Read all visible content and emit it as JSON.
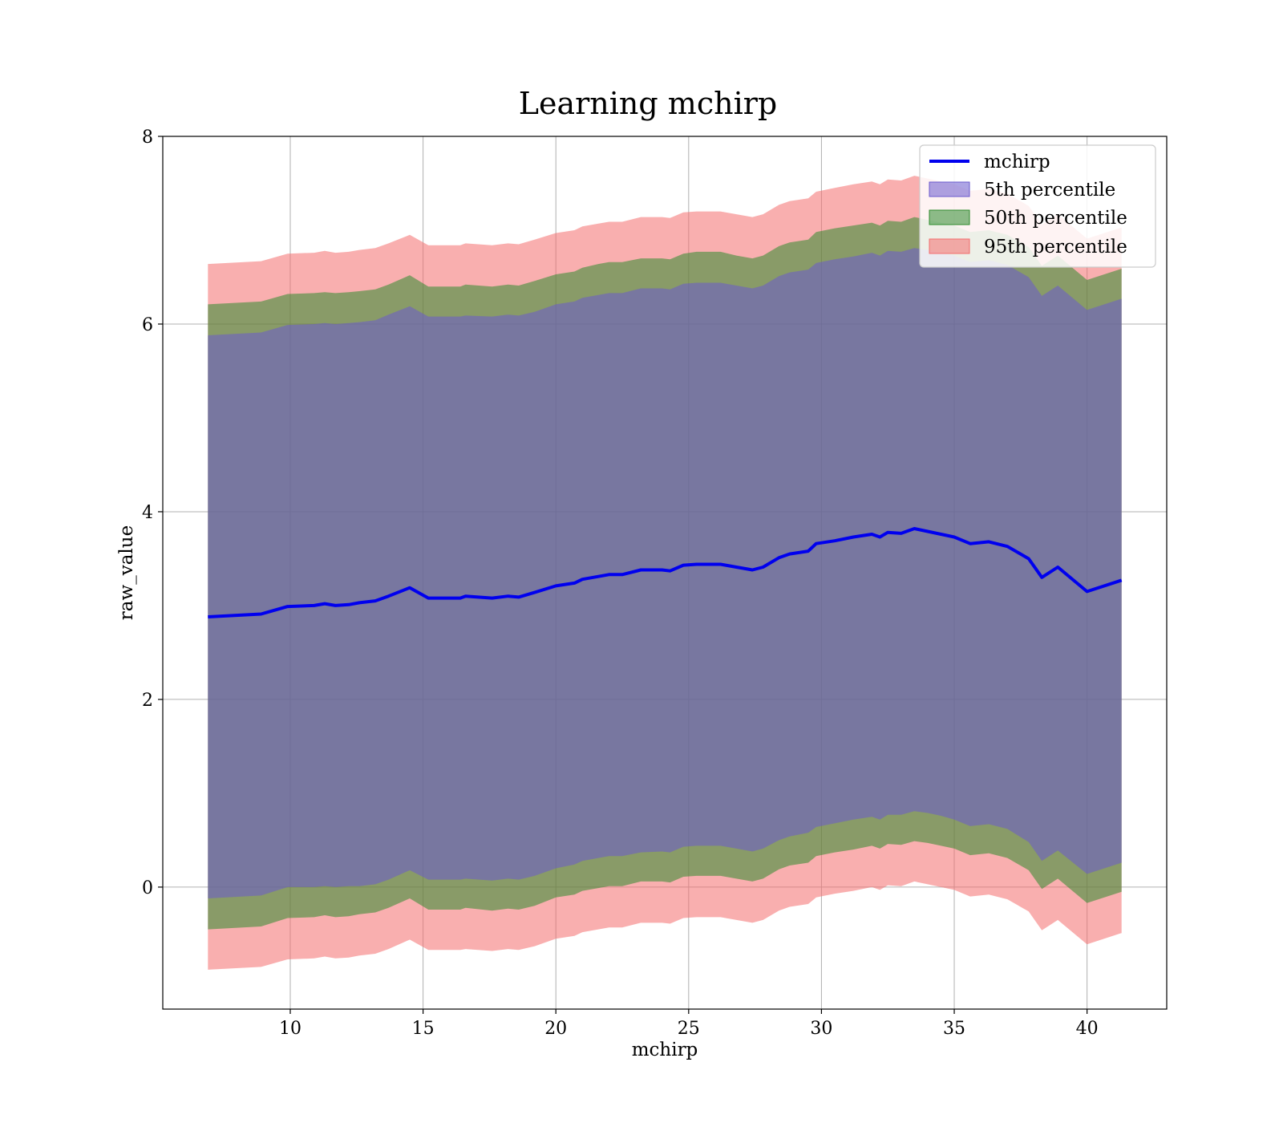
{
  "chart_data": {
    "type": "area",
    "title": "Learning mchirp",
    "xlabel": "mchirp",
    "ylabel": "raw_value",
    "xlim": [
      5.2,
      43.0
    ],
    "ylim": [
      -1.3,
      8.0
    ],
    "x_ticks": [
      10,
      15,
      20,
      25,
      30,
      35,
      40
    ],
    "y_ticks": [
      0,
      2,
      4,
      6,
      8
    ],
    "grid": true,
    "legend_position": "top-right",
    "colors": {
      "line": "#0000ee",
      "band_5": "#6a5acd",
      "band_50": "#2e8b2e",
      "band_95": "#f46d6d"
    },
    "x": [
      6.9,
      8.9,
      9.9,
      10.9,
      11.3,
      11.7,
      12.2,
      12.6,
      13.2,
      13.7,
      14.5,
      15.2,
      16.4,
      16.6,
      17.6,
      18.2,
      18.6,
      19.2,
      20.0,
      20.7,
      21.0,
      21.6,
      22.0,
      22.5,
      23.2,
      24.0,
      24.3,
      24.8,
      25.3,
      26.2,
      26.8,
      27.4,
      27.8,
      28.4,
      28.8,
      29.5,
      29.8,
      30.5,
      31.2,
      31.9,
      32.2,
      32.5,
      33.0,
      33.5,
      34.0,
      34.5,
      35.0,
      35.6,
      36.3,
      37.0,
      37.8,
      38.3,
      38.9,
      40.0,
      41.3
    ],
    "series": [
      {
        "name": "mchirp",
        "values": [
          2.88,
          2.91,
          2.99,
          3.0,
          3.02,
          3.0,
          3.01,
          3.03,
          3.05,
          3.1,
          3.19,
          3.08,
          3.08,
          3.1,
          3.08,
          3.1,
          3.09,
          3.14,
          3.21,
          3.24,
          3.28,
          3.31,
          3.33,
          3.33,
          3.38,
          3.38,
          3.37,
          3.43,
          3.44,
          3.44,
          3.41,
          3.38,
          3.41,
          3.51,
          3.55,
          3.58,
          3.66,
          3.69,
          3.73,
          3.76,
          3.73,
          3.78,
          3.77,
          3.82,
          3.79,
          3.76,
          3.73,
          3.66,
          3.68,
          3.63,
          3.5,
          3.3,
          3.41,
          3.15,
          3.27
        ]
      }
    ],
    "bands": [
      {
        "name": "5th percentile",
        "lower": [
          -0.12,
          -0.09,
          0.0,
          0.0,
          0.01,
          0.0,
          0.01,
          0.01,
          0.03,
          0.08,
          0.18,
          0.08,
          0.08,
          0.09,
          0.07,
          0.09,
          0.08,
          0.12,
          0.2,
          0.24,
          0.28,
          0.31,
          0.33,
          0.33,
          0.37,
          0.38,
          0.37,
          0.43,
          0.44,
          0.44,
          0.41,
          0.38,
          0.41,
          0.5,
          0.54,
          0.58,
          0.64,
          0.68,
          0.72,
          0.75,
          0.72,
          0.77,
          0.77,
          0.81,
          0.79,
          0.76,
          0.72,
          0.65,
          0.67,
          0.62,
          0.48,
          0.28,
          0.39,
          0.14,
          0.26
        ],
        "upper": [
          5.88,
          5.91,
          5.99,
          6.0,
          6.01,
          6.0,
          6.01,
          6.02,
          6.04,
          6.1,
          6.19,
          6.08,
          6.08,
          6.09,
          6.08,
          6.1,
          6.09,
          6.13,
          6.21,
          6.24,
          6.28,
          6.31,
          6.33,
          6.33,
          6.38,
          6.38,
          6.37,
          6.43,
          6.44,
          6.44,
          6.41,
          6.38,
          6.41,
          6.51,
          6.55,
          6.58,
          6.65,
          6.69,
          6.72,
          6.76,
          6.73,
          6.78,
          6.77,
          6.81,
          6.79,
          6.76,
          6.73,
          6.66,
          6.68,
          6.63,
          6.5,
          6.3,
          6.41,
          6.15,
          6.27
        ]
      },
      {
        "name": "50th percentile",
        "lower": [
          -0.45,
          -0.42,
          -0.33,
          -0.32,
          -0.3,
          -0.32,
          -0.31,
          -0.29,
          -0.27,
          -0.22,
          -0.12,
          -0.24,
          -0.24,
          -0.22,
          -0.25,
          -0.23,
          -0.24,
          -0.2,
          -0.11,
          -0.08,
          -0.04,
          -0.01,
          0.01,
          0.01,
          0.06,
          0.06,
          0.05,
          0.11,
          0.12,
          0.12,
          0.09,
          0.06,
          0.09,
          0.19,
          0.23,
          0.26,
          0.33,
          0.37,
          0.4,
          0.44,
          0.41,
          0.46,
          0.45,
          0.49,
          0.47,
          0.44,
          0.41,
          0.34,
          0.36,
          0.31,
          0.18,
          -0.02,
          0.09,
          -0.17,
          -0.05
        ],
        "upper": [
          6.21,
          6.24,
          6.32,
          6.33,
          6.34,
          6.33,
          6.34,
          6.35,
          6.37,
          6.42,
          6.52,
          6.4,
          6.4,
          6.42,
          6.4,
          6.42,
          6.41,
          6.46,
          6.53,
          6.56,
          6.6,
          6.64,
          6.66,
          6.66,
          6.7,
          6.7,
          6.69,
          6.75,
          6.77,
          6.77,
          6.73,
          6.7,
          6.73,
          6.83,
          6.87,
          6.9,
          6.98,
          7.02,
          7.05,
          7.08,
          7.05,
          7.1,
          7.09,
          7.14,
          7.11,
          7.08,
          7.05,
          6.98,
          7.0,
          6.95,
          6.82,
          6.62,
          6.73,
          6.47,
          6.59
        ]
      },
      {
        "name": "95th percentile",
        "lower": [
          -0.88,
          -0.85,
          -0.77,
          -0.76,
          -0.74,
          -0.76,
          -0.75,
          -0.73,
          -0.71,
          -0.66,
          -0.56,
          -0.67,
          -0.67,
          -0.66,
          -0.68,
          -0.66,
          -0.67,
          -0.63,
          -0.55,
          -0.52,
          -0.48,
          -0.45,
          -0.43,
          -0.43,
          -0.38,
          -0.38,
          -0.39,
          -0.33,
          -0.32,
          -0.32,
          -0.35,
          -0.38,
          -0.35,
          -0.25,
          -0.21,
          -0.18,
          -0.11,
          -0.07,
          -0.04,
          0.0,
          -0.03,
          0.02,
          0.01,
          0.06,
          0.03,
          0.0,
          -0.03,
          -0.1,
          -0.08,
          -0.13,
          -0.26,
          -0.46,
          -0.35,
          -0.61,
          -0.49
        ],
        "upper": [
          6.64,
          6.67,
          6.75,
          6.76,
          6.78,
          6.76,
          6.77,
          6.79,
          6.81,
          6.86,
          6.95,
          6.84,
          6.84,
          6.86,
          6.84,
          6.86,
          6.85,
          6.9,
          6.97,
          7.0,
          7.04,
          7.07,
          7.09,
          7.09,
          7.14,
          7.14,
          7.13,
          7.19,
          7.2,
          7.2,
          7.17,
          7.14,
          7.17,
          7.27,
          7.31,
          7.34,
          7.41,
          7.45,
          7.49,
          7.52,
          7.49,
          7.54,
          7.53,
          7.58,
          7.55,
          7.52,
          7.49,
          7.42,
          7.44,
          7.39,
          7.26,
          7.06,
          7.17,
          6.91,
          7.03
        ]
      }
    ],
    "legend": [
      "mchirp",
      "5th percentile",
      "50th percentile",
      "95th percentile"
    ]
  }
}
